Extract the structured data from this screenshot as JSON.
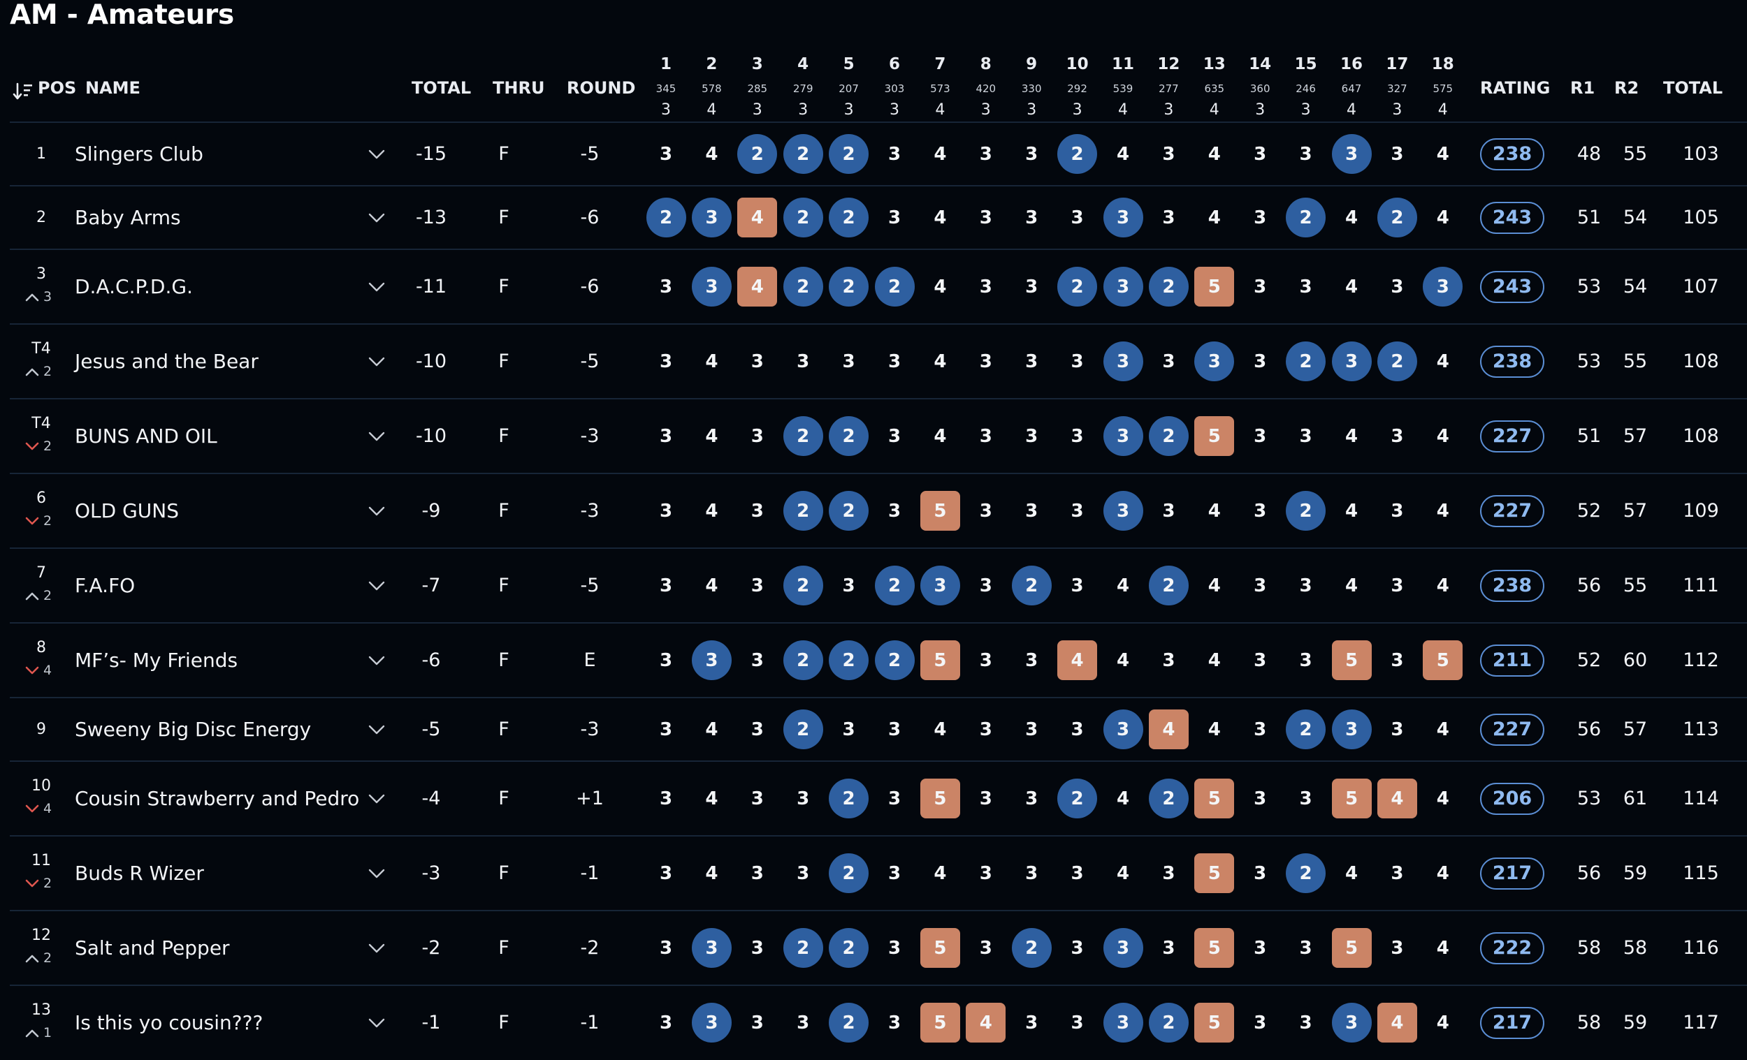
{
  "title": "AM - Amateurs",
  "colors": {
    "background": "#03070d",
    "birdie": "#2e5fa0",
    "bogey": "#cb8466",
    "rating_border": "#5b8ed4",
    "move_up": "#c2c8d0",
    "move_down": "#e0574f"
  },
  "headers": {
    "pos": "POS",
    "name": "NAME",
    "total": "TOTAL",
    "thru": "THRU",
    "round": "ROUND",
    "rating": "RATING",
    "r1": "R1",
    "r2": "R2",
    "total2": "TOTAL",
    "sort_icon": "sort-descending-icon"
  },
  "holes": [
    {
      "num": "1",
      "dist": "345",
      "par": "3"
    },
    {
      "num": "2",
      "dist": "578",
      "par": "4"
    },
    {
      "num": "3",
      "dist": "285",
      "par": "3"
    },
    {
      "num": "4",
      "dist": "279",
      "par": "3"
    },
    {
      "num": "5",
      "dist": "207",
      "par": "3"
    },
    {
      "num": "6",
      "dist": "303",
      "par": "3"
    },
    {
      "num": "7",
      "dist": "573",
      "par": "4"
    },
    {
      "num": "8",
      "dist": "420",
      "par": "3"
    },
    {
      "num": "9",
      "dist": "330",
      "par": "3"
    },
    {
      "num": "10",
      "dist": "292",
      "par": "3"
    },
    {
      "num": "11",
      "dist": "539",
      "par": "4"
    },
    {
      "num": "12",
      "dist": "277",
      "par": "3"
    },
    {
      "num": "13",
      "dist": "635",
      "par": "4"
    },
    {
      "num": "14",
      "dist": "360",
      "par": "3"
    },
    {
      "num": "15",
      "dist": "246",
      "par": "3"
    },
    {
      "num": "16",
      "dist": "647",
      "par": "4"
    },
    {
      "num": "17",
      "dist": "327",
      "par": "3"
    },
    {
      "num": "18",
      "dist": "575",
      "par": "4"
    }
  ],
  "teams": [
    {
      "pos": "1",
      "move": null,
      "move_dir": null,
      "name": "Slingers Club",
      "total": "-15",
      "thru": "F",
      "round": "-5",
      "scores": [
        "3",
        "4",
        "2",
        "2",
        "2",
        "3",
        "4",
        "3",
        "3",
        "2",
        "4",
        "3",
        "4",
        "3",
        "3",
        "3",
        "3",
        "4"
      ],
      "rating": "238",
      "r1": "48",
      "r2": "55",
      "total2": "103"
    },
    {
      "pos": "2",
      "move": null,
      "move_dir": null,
      "name": "Baby Arms",
      "total": "-13",
      "thru": "F",
      "round": "-6",
      "scores": [
        "2",
        "3",
        "4",
        "2",
        "2",
        "3",
        "4",
        "3",
        "3",
        "3",
        "3",
        "3",
        "4",
        "3",
        "2",
        "4",
        "2",
        "4"
      ],
      "rating": "243",
      "r1": "51",
      "r2": "54",
      "total2": "105"
    },
    {
      "pos": "3",
      "move": "3",
      "move_dir": "up",
      "name": "D.A.C.P.D.G.",
      "total": "-11",
      "thru": "F",
      "round": "-6",
      "scores": [
        "3",
        "3",
        "4",
        "2",
        "2",
        "2",
        "4",
        "3",
        "3",
        "2",
        "3",
        "2",
        "5",
        "3",
        "3",
        "4",
        "3",
        "3"
      ],
      "rating": "243",
      "r1": "53",
      "r2": "54",
      "total2": "107"
    },
    {
      "pos": "T4",
      "move": "2",
      "move_dir": "up",
      "name": "Jesus and the Bear",
      "total": "-10",
      "thru": "F",
      "round": "-5",
      "scores": [
        "3",
        "4",
        "3",
        "3",
        "3",
        "3",
        "4",
        "3",
        "3",
        "3",
        "3",
        "3",
        "3",
        "3",
        "2",
        "3",
        "2",
        "4"
      ],
      "rating": "238",
      "r1": "53",
      "r2": "55",
      "total2": "108"
    },
    {
      "pos": "T4",
      "move": "2",
      "move_dir": "down",
      "name": "BUNS AND OIL",
      "total": "-10",
      "thru": "F",
      "round": "-3",
      "scores": [
        "3",
        "4",
        "3",
        "2",
        "2",
        "3",
        "4",
        "3",
        "3",
        "3",
        "3",
        "2",
        "5",
        "3",
        "3",
        "4",
        "3",
        "4"
      ],
      "rating": "227",
      "r1": "51",
      "r2": "57",
      "total2": "108"
    },
    {
      "pos": "6",
      "move": "2",
      "move_dir": "down",
      "name": "OLD GUNS",
      "total": "-9",
      "thru": "F",
      "round": "-3",
      "scores": [
        "3",
        "4",
        "3",
        "2",
        "2",
        "3",
        "5",
        "3",
        "3",
        "3",
        "3",
        "3",
        "4",
        "3",
        "2",
        "4",
        "3",
        "4"
      ],
      "rating": "227",
      "r1": "52",
      "r2": "57",
      "total2": "109"
    },
    {
      "pos": "7",
      "move": "2",
      "move_dir": "up",
      "name": "F.A.FO",
      "total": "-7",
      "thru": "F",
      "round": "-5",
      "scores": [
        "3",
        "4",
        "3",
        "2",
        "3",
        "2",
        "3",
        "3",
        "2",
        "3",
        "4",
        "2",
        "4",
        "3",
        "3",
        "4",
        "3",
        "4"
      ],
      "rating": "238",
      "r1": "56",
      "r2": "55",
      "total2": "111"
    },
    {
      "pos": "8",
      "move": "4",
      "move_dir": "down",
      "name": "MF’s- My Friends",
      "total": "-6",
      "thru": "F",
      "round": "E",
      "scores": [
        "3",
        "3",
        "3",
        "2",
        "2",
        "2",
        "5",
        "3",
        "3",
        "4",
        "4",
        "3",
        "4",
        "3",
        "3",
        "5",
        "3",
        "5"
      ],
      "rating": "211",
      "r1": "52",
      "r2": "60",
      "total2": "112"
    },
    {
      "pos": "9",
      "move": null,
      "move_dir": null,
      "name": "Sweeny Big Disc Energy",
      "total": "-5",
      "thru": "F",
      "round": "-3",
      "scores": [
        "3",
        "4",
        "3",
        "2",
        "3",
        "3",
        "4",
        "3",
        "3",
        "3",
        "3",
        "4",
        "4",
        "3",
        "2",
        "3",
        "3",
        "4"
      ],
      "rating": "227",
      "r1": "56",
      "r2": "57",
      "total2": "113"
    },
    {
      "pos": "10",
      "move": "4",
      "move_dir": "down",
      "name": "Cousin Strawberry and Pedro",
      "total": "-4",
      "thru": "F",
      "round": "+1",
      "scores": [
        "3",
        "4",
        "3",
        "3",
        "2",
        "3",
        "5",
        "3",
        "3",
        "2",
        "4",
        "2",
        "5",
        "3",
        "3",
        "5",
        "4",
        "4"
      ],
      "rating": "206",
      "r1": "53",
      "r2": "61",
      "total2": "114"
    },
    {
      "pos": "11",
      "move": "2",
      "move_dir": "down",
      "name": "Buds R Wizer",
      "total": "-3",
      "thru": "F",
      "round": "-1",
      "scores": [
        "3",
        "4",
        "3",
        "3",
        "2",
        "3",
        "4",
        "3",
        "3",
        "3",
        "4",
        "3",
        "5",
        "3",
        "2",
        "4",
        "3",
        "4"
      ],
      "rating": "217",
      "r1": "56",
      "r2": "59",
      "total2": "115"
    },
    {
      "pos": "12",
      "move": "2",
      "move_dir": "up",
      "name": "Salt and Pepper",
      "total": "-2",
      "thru": "F",
      "round": "-2",
      "scores": [
        "3",
        "3",
        "3",
        "2",
        "2",
        "3",
        "5",
        "3",
        "2",
        "3",
        "3",
        "3",
        "5",
        "3",
        "3",
        "5",
        "3",
        "4"
      ],
      "rating": "222",
      "r1": "58",
      "r2": "58",
      "total2": "116"
    },
    {
      "pos": "13",
      "move": "1",
      "move_dir": "up",
      "name": "Is this yo cousin???",
      "total": "-1",
      "thru": "F",
      "round": "-1",
      "scores": [
        "3",
        "3",
        "3",
        "3",
        "2",
        "3",
        "5",
        "4",
        "3",
        "3",
        "3",
        "2",
        "5",
        "3",
        "3",
        "3",
        "4",
        "4"
      ],
      "rating": "217",
      "r1": "58",
      "r2": "59",
      "total2": "117"
    }
  ]
}
